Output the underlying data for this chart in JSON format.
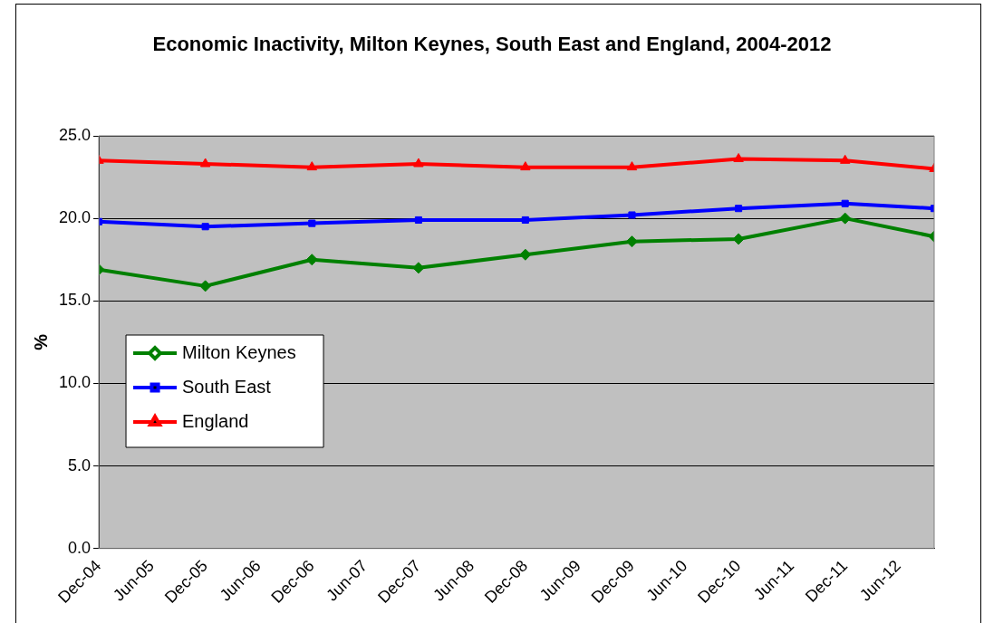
{
  "chart_data": {
    "type": "line",
    "title": "Economic Inactivity, Milton Keynes, South East and England, 2004-2012",
    "ylabel": "%",
    "x": [
      "2004-12",
      "2005-12",
      "2006-12",
      "2007-12",
      "2008-12",
      "2009-12",
      "2010-12",
      "2011-12",
      "2012-10"
    ],
    "series": [
      {
        "name": "Milton Keynes",
        "color": "#008000",
        "marker": "diamond",
        "values": [
          16.9,
          15.9,
          17.5,
          17.0,
          17.8,
          18.6,
          18.75,
          20.0,
          18.9
        ]
      },
      {
        "name": "South East",
        "color": "#0000ff",
        "marker": "square",
        "values": [
          19.8,
          19.5,
          19.7,
          19.9,
          19.9,
          20.2,
          20.6,
          20.9,
          20.6
        ]
      },
      {
        "name": "England",
        "color": "#ff0000",
        "marker": "triangle",
        "values": [
          23.5,
          23.3,
          23.1,
          23.3,
          23.1,
          23.1,
          23.6,
          23.5,
          23.0
        ]
      }
    ],
    "xlim": [
      "2004-12",
      "2012-10"
    ],
    "xticks": [
      {
        "value": "2004-12",
        "label": "Dec-04"
      },
      {
        "value": "2005-06",
        "label": "Jun-05"
      },
      {
        "value": "2005-12",
        "label": "Dec-05"
      },
      {
        "value": "2006-06",
        "label": "Jun-06"
      },
      {
        "value": "2006-12",
        "label": "Dec-06"
      },
      {
        "value": "2007-06",
        "label": "Jun-07"
      },
      {
        "value": "2007-12",
        "label": "Dec-07"
      },
      {
        "value": "2008-06",
        "label": "Jun-08"
      },
      {
        "value": "2008-12",
        "label": "Dec-08"
      },
      {
        "value": "2009-06",
        "label": "Jun-09"
      },
      {
        "value": "2009-12",
        "label": "Dec-09"
      },
      {
        "value": "2010-06",
        "label": "Jun-10"
      },
      {
        "value": "2010-12",
        "label": "Dec-10"
      },
      {
        "value": "2011-06",
        "label": "Jun-11"
      },
      {
        "value": "2011-12",
        "label": "Dec-11"
      },
      {
        "value": "2012-06",
        "label": "Jun-12"
      }
    ],
    "ylim": [
      0,
      25
    ],
    "yticks": [
      {
        "value": 0,
        "label": "0.0"
      },
      {
        "value": 5,
        "label": "5.0"
      },
      {
        "value": 10,
        "label": "10.0"
      },
      {
        "value": 15,
        "label": "15.0"
      },
      {
        "value": 20,
        "label": "20.0"
      },
      {
        "value": 25,
        "label": "25.0"
      }
    ],
    "grid": "y",
    "legend": "left",
    "line_style": "solid"
  }
}
